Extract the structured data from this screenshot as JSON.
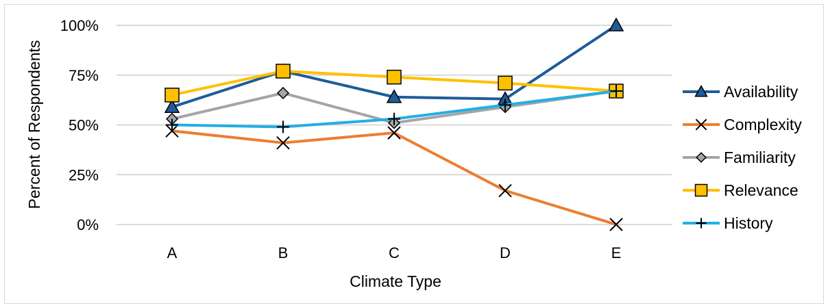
{
  "chart_data": {
    "type": "line",
    "title": "",
    "xlabel": "Climate Type",
    "ylabel": "Percent of Respondents",
    "categories": [
      "A",
      "B",
      "C",
      "D",
      "E"
    ],
    "ylim": [
      0,
      100
    ],
    "yticks": [
      0,
      25,
      50,
      75,
      100
    ],
    "ytick_labels": [
      "0%",
      "25%",
      "50%",
      "75%",
      "100%"
    ],
    "grid": "horizontal",
    "legend": "right",
    "series": [
      {
        "name": "Availability",
        "values": [
          59,
          77,
          64,
          63,
          100
        ],
        "color": "#1f5c99",
        "marker": "triangle"
      },
      {
        "name": "Complexity",
        "values": [
          47,
          41,
          46,
          17,
          0
        ],
        "color": "#ed7d31",
        "marker": "x"
      },
      {
        "name": "Familiarity",
        "values": [
          53,
          66,
          51,
          59,
          67
        ],
        "color": "#a5a5a5",
        "marker": "diamond"
      },
      {
        "name": "Relevance",
        "values": [
          65,
          77,
          74,
          71,
          67
        ],
        "color": "#ffc000",
        "marker": "square"
      },
      {
        "name": "History",
        "values": [
          50,
          49,
          53,
          60,
          67
        ],
        "color": "#22aee6",
        "marker": "plus"
      }
    ]
  }
}
